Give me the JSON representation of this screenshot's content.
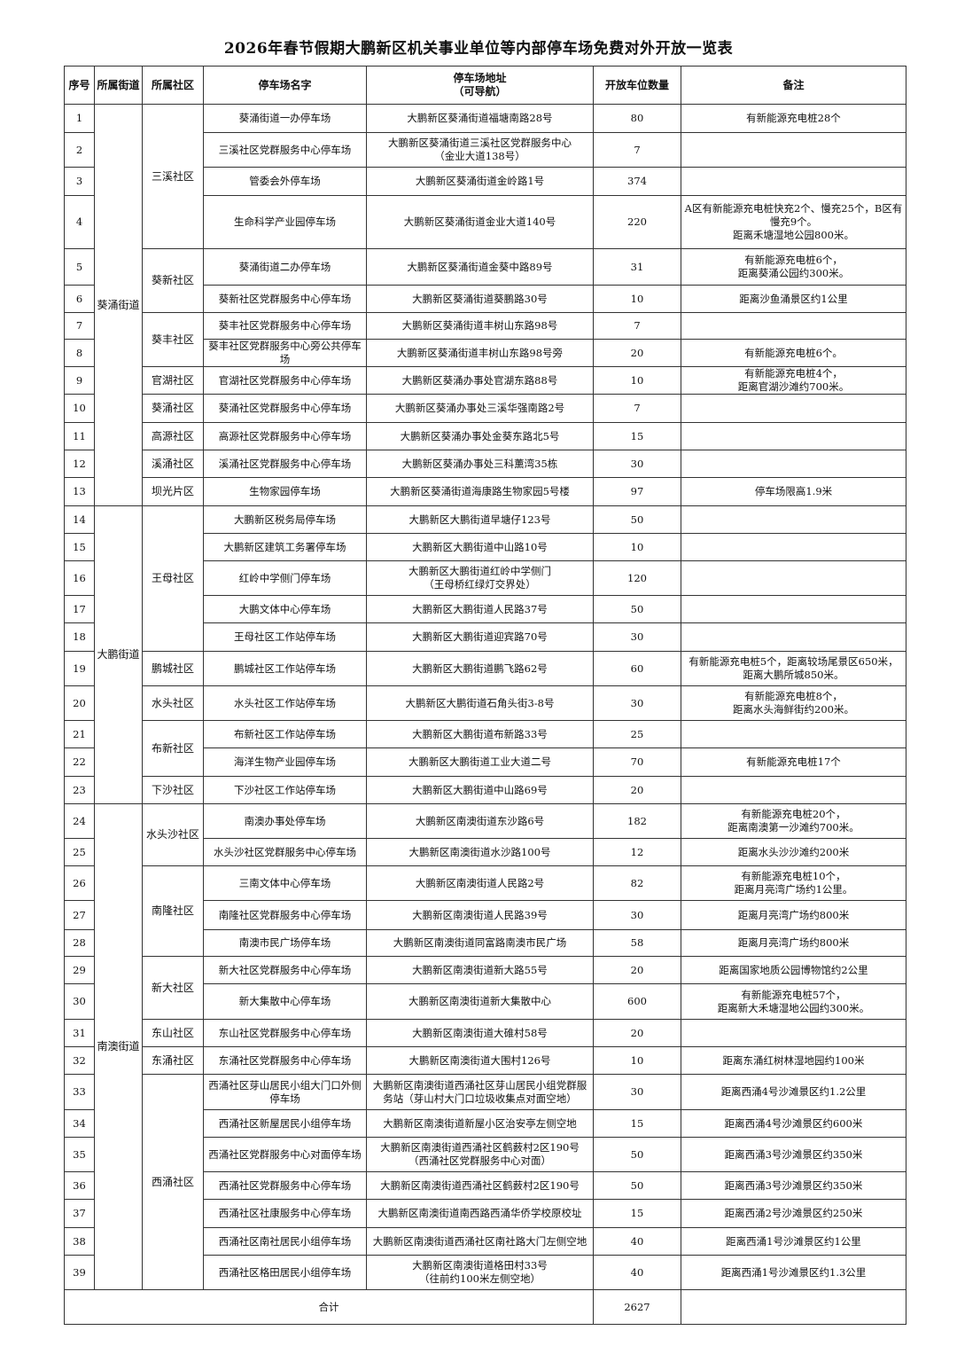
{
  "title": "2026年春节假期大鹏新区机关事业单位等内部停车场免费对外开放一览表",
  "headers": [
    "序号",
    "所属街道",
    "所属社区",
    "停车场名字",
    "停车场地址\n（可导航）",
    "开放车位数量",
    "备注"
  ],
  "streets": [
    {
      "name": "葵涌街道",
      "communities": [
        {
          "name": "三溪社区",
          "lots": [
            {
              "no": "1",
              "name": "葵涌街道一办停车场",
              "address": "大鹏新区葵涌街道福塘南路28号",
              "spaces": "80",
              "remark": "有新能源充电桩28个"
            },
            {
              "no": "2",
              "name": "三溪社区党群服务中心停车场",
              "address": "大鹏新区葵涌街道三溪社区党群服务中心\n（金业大道138号）",
              "spaces": "7",
              "remark": ""
            },
            {
              "no": "3",
              "name": "管委会外停车场",
              "address": "大鹏新区葵涌街道金岭路1号",
              "spaces": "374",
              "remark": ""
            },
            {
              "no": "4",
              "name": "生命科学产业园停车场",
              "address": "大鹏新区葵涌街道金业大道140号",
              "spaces": "220",
              "remark": "A区有新能源充电桩快充2个、慢充25个，B区有慢充9个。\n距离禾塘湿地公园800米。"
            }
          ]
        },
        {
          "name": "葵新社区",
          "lots": [
            {
              "no": "5",
              "name": "葵涌街道二办停车场",
              "address": "大鹏新区葵涌街道金葵中路89号",
              "spaces": "31",
              "remark": "有新能源充电桩6个，\n距离葵涌公园约300米。"
            },
            {
              "no": "6",
              "name": "葵新社区党群服务中心停车场",
              "address": "大鹏新区葵涌街道葵鹏路30号",
              "spaces": "10",
              "remark": "距离沙鱼涌景区约1公里"
            }
          ]
        },
        {
          "name": "葵丰社区",
          "lots": [
            {
              "no": "7",
              "name": "葵丰社区党群服务中心停车场",
              "address": "大鹏新区葵涌街道丰树山东路98号",
              "spaces": "7",
              "remark": ""
            },
            {
              "no": "8",
              "name": "葵丰社区党群服务中心旁公共停车场",
              "address": "大鹏新区葵涌街道丰树山东路98号旁",
              "spaces": "20",
              "remark": "有新能源充电桩6个。"
            }
          ]
        },
        {
          "name": "官湖社区",
          "lots": [
            {
              "no": "9",
              "name": "官湖社区党群服务中心停车场",
              "address": "大鹏新区葵涌办事处官湖东路88号",
              "spaces": "10",
              "remark": "有新能源充电桩4个，\n距离官湖沙滩约700米。"
            }
          ]
        },
        {
          "name": "葵涌社区",
          "lots": [
            {
              "no": "10",
              "name": "葵涌社区党群服务中心停车场",
              "address": "大鹏新区葵涌办事处三溪华强南路2号",
              "spaces": "7",
              "remark": ""
            }
          ]
        },
        {
          "name": "高源社区",
          "lots": [
            {
              "no": "11",
              "name": "高源社区党群服务中心停车场",
              "address": "大鹏新区葵涌办事处金葵东路北5号",
              "spaces": "15",
              "remark": ""
            }
          ]
        },
        {
          "name": "溪涌社区",
          "lots": [
            {
              "no": "12",
              "name": "溪涌社区党群服务中心停车场",
              "address": "大鹏新区葵涌办事处三科薰湾35栋",
              "spaces": "30",
              "remark": ""
            }
          ]
        },
        {
          "name": "坝光片区",
          "lots": [
            {
              "no": "13",
              "name": "生物家园停车场",
              "address": "大鹏新区葵涌街道海康路生物家园5号楼",
              "spaces": "97",
              "remark": "停车场限高1.9米"
            }
          ]
        }
      ]
    },
    {
      "name": "大鹏街道",
      "communities": [
        {
          "name": "王母社区",
          "lots": [
            {
              "no": "14",
              "name": "大鹏新区税务局停车场",
              "address": "大鹏新区大鹏街道早塘仔123号",
              "spaces": "50",
              "remark": ""
            },
            {
              "no": "15",
              "name": "大鹏新区建筑工务署停车场",
              "address": "大鹏新区大鹏街道中山路10号",
              "spaces": "10",
              "remark": ""
            },
            {
              "no": "16",
              "name": "红岭中学侧门停车场",
              "address": "大鹏新区大鹏街道红岭中学侧门\n（王母桥红绿灯交界处）",
              "spaces": "120",
              "remark": ""
            },
            {
              "no": "17",
              "name": "大鹏文体中心停车场",
              "address": "大鹏新区大鹏街道人民路37号",
              "spaces": "50",
              "remark": ""
            },
            {
              "no": "18",
              "name": "王母社区工作站停车场",
              "address": "大鹏新区大鹏街道迎宾路70号",
              "spaces": "30",
              "remark": ""
            }
          ]
        },
        {
          "name": "鹏城社区",
          "lots": [
            {
              "no": "19",
              "name": "鹏城社区工作站停车场",
              "address": "大鹏新区大鹏街道鹏飞路62号",
              "spaces": "60",
              "remark": "有新能源充电桩5个，距离较场尾景区650米，\n距离大鹏所城850米。"
            }
          ]
        },
        {
          "name": "水头社区",
          "lots": [
            {
              "no": "20",
              "name": "水头社区工作站停车场",
              "address": "大鹏新区大鹏街道石角头街3-8号",
              "spaces": "30",
              "remark": "有新能源充电桩8个，\n距离水头海鲜街约200米。"
            }
          ]
        },
        {
          "name": "布新社区",
          "lots": [
            {
              "no": "21",
              "name": "布新社区工作站停车场",
              "address": "大鹏新区大鹏街道布新路33号",
              "spaces": "25",
              "remark": ""
            },
            {
              "no": "22",
              "name": "海洋生物产业园停车场",
              "address": "大鹏新区大鹏街道工业大道二号",
              "spaces": "70",
              "remark": "有新能源充电桩17个"
            }
          ]
        },
        {
          "name": "下沙社区",
          "lots": [
            {
              "no": "23",
              "name": "下沙社区工作站停车场",
              "address": "大鹏新区大鹏街道中山路69号",
              "spaces": "20",
              "remark": ""
            }
          ]
        }
      ]
    },
    {
      "name": "南澳街道",
      "communities": [
        {
          "name": "水头沙社区",
          "lots": [
            {
              "no": "24",
              "name": "南澳办事处停车场",
              "address": "大鹏新区南澳街道东沙路6号",
              "spaces": "182",
              "remark": "有新能源充电桩20个，\n距离南澳第一沙滩约700米。"
            },
            {
              "no": "25",
              "name": "水头沙社区党群服务中心停车场",
              "address": "大鹏新区南澳街道水沙路100号",
              "spaces": "12",
              "remark": "距离水头沙沙滩约200米"
            }
          ]
        },
        {
          "name": "南隆社区",
          "lots": [
            {
              "no": "26",
              "name": "三南文体中心停车场",
              "address": "大鹏新区南澳街道人民路2号",
              "spaces": "82",
              "remark": "有新能源充电桩10个，\n距离月亮湾广场约1公里。"
            },
            {
              "no": "27",
              "name": "南隆社区党群服务中心停车场",
              "address": "大鹏新区南澳街道人民路39号",
              "spaces": "30",
              "remark": "距离月亮湾广场约800米"
            },
            {
              "no": "28",
              "name": "南澳市民广场停车场",
              "address": "大鹏新区南澳街道同富路南澳市民广场",
              "spaces": "58",
              "remark": "距离月亮湾广场约800米"
            }
          ]
        },
        {
          "name": "新大社区",
          "lots": [
            {
              "no": "29",
              "name": "新大社区党群服务中心停车场",
              "address": "大鹏新区南澳街道新大路55号",
              "spaces": "20",
              "remark": "距离国家地质公园博物馆约2公里"
            },
            {
              "no": "30",
              "name": "新大集散中心停车场",
              "address": "大鹏新区南澳街道新大集散中心",
              "spaces": "600",
              "remark": "有新能源充电桩57个，\n距离新大禾塘湿地公园约300米。"
            }
          ]
        },
        {
          "name": "东山社区",
          "lots": [
            {
              "no": "31",
              "name": "东山社区党群服务中心停车场",
              "address": "大鹏新区南澳街道大碓村58号",
              "spaces": "20",
              "remark": ""
            }
          ]
        },
        {
          "name": "东涌社区",
          "lots": [
            {
              "no": "32",
              "name": "东涌社区党群服务中心停车场",
              "address": "大鹏新区南澳街道大围村126号",
              "spaces": "10",
              "remark": "距离东涌红树林湿地园约100米"
            }
          ]
        },
        {
          "name": "西涌社区",
          "lots": [
            {
              "no": "33",
              "name": "西涌社区芽山居民小组大门口外侧停车场",
              "address": "大鹏新区南澳街道西涌社区芽山居民小组党群服务站（芽山村大门口垃圾收集点对面空地）",
              "spaces": "30",
              "remark": "距离西涌4号沙滩景区约1.2公里"
            },
            {
              "no": "34",
              "name": "西涌社区新屋居民小组停车场",
              "address": "大鹏新区南澳街道新屋小区治安亭左侧空地",
              "spaces": "15",
              "remark": "距离西涌4号沙滩景区约600米"
            },
            {
              "no": "35",
              "name": "西涌社区党群服务中心对面停车场",
              "address": "大鹏新区南澳街道西涌社区鹤薮村2区190号\n（西涌社区党群服务中心对面）",
              "spaces": "50",
              "remark": "距离西涌3号沙滩景区约350米"
            },
            {
              "no": "36",
              "name": "西涌社区党群服务中心停车场",
              "address": "大鹏新区南澳街道西涌社区鹤薮村2区190号",
              "spaces": "50",
              "remark": "距离西涌3号沙滩景区约350米"
            },
            {
              "no": "37",
              "name": "西涌社区社康服务中心停车场",
              "address": "大鹏新区南澳街道南西路西涌华侨学校原校址",
              "spaces": "15",
              "remark": "距离西涌2号沙滩景区约250米"
            },
            {
              "no": "38",
              "name": "西涌社区南社居民小组停车场",
              "address": "大鹏新区南澳街道西涌社区南社路大门左侧空地",
              "spaces": "40",
              "remark": "距离西涌1号沙滩景区约1公里"
            },
            {
              "no": "39",
              "name": "西涌社区格田居民小组停车场",
              "address": "大鹏新区南澳街道格田村33号\n（往前约100米左侧空地）",
              "spaces": "40",
              "remark": "距离西涌1号沙滩景区约1.3公里"
            }
          ]
        }
      ]
    }
  ],
  "total": {
    "label": "合计",
    "spaces": "2627",
    "remark": ""
  }
}
